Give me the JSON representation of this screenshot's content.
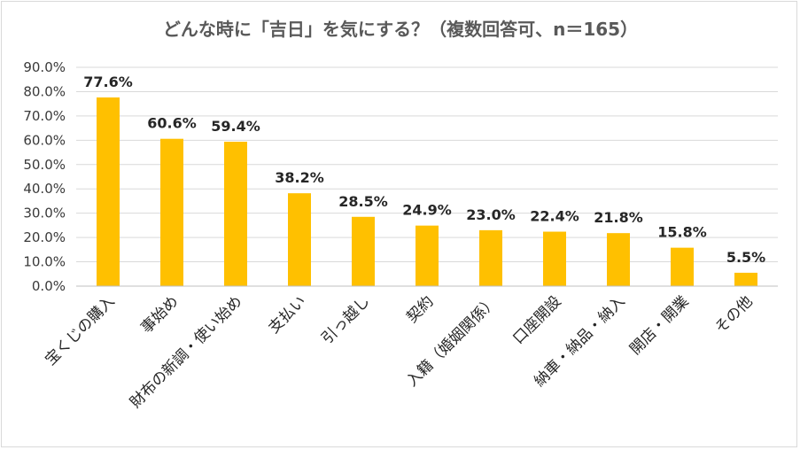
{
  "chart_data": {
    "type": "bar",
    "title": "どんな時に「吉日」を気にする？（複数回答可、n＝165）",
    "categories": [
      "宝くじの購入",
      "事始め",
      "財布の新調・使い始め",
      "支払い",
      "引っ越し",
      "契約",
      "入籍（婚姻関係）",
      "口座開設",
      "納車・納品・納入",
      "開店・開業",
      "その他"
    ],
    "values": [
      77.6,
      60.6,
      59.4,
      38.2,
      28.5,
      24.9,
      23.0,
      22.4,
      21.8,
      15.8,
      5.5
    ],
    "data_labels": [
      "77.6%",
      "60.6%",
      "59.4%",
      "38.2%",
      "28.5%",
      "24.9%",
      "23.0%",
      "22.4%",
      "21.8%",
      "15.8%",
      "5.5%"
    ],
    "y_ticks": [
      "0.0%",
      "10.0%",
      "20.0%",
      "30.0%",
      "40.0%",
      "50.0%",
      "60.0%",
      "70.0%",
      "80.0%",
      "90.0%"
    ],
    "ylim": [
      0,
      90
    ],
    "grid": true,
    "legend": "none",
    "bar_color": "#FFC000",
    "xlabel": "",
    "ylabel": ""
  }
}
